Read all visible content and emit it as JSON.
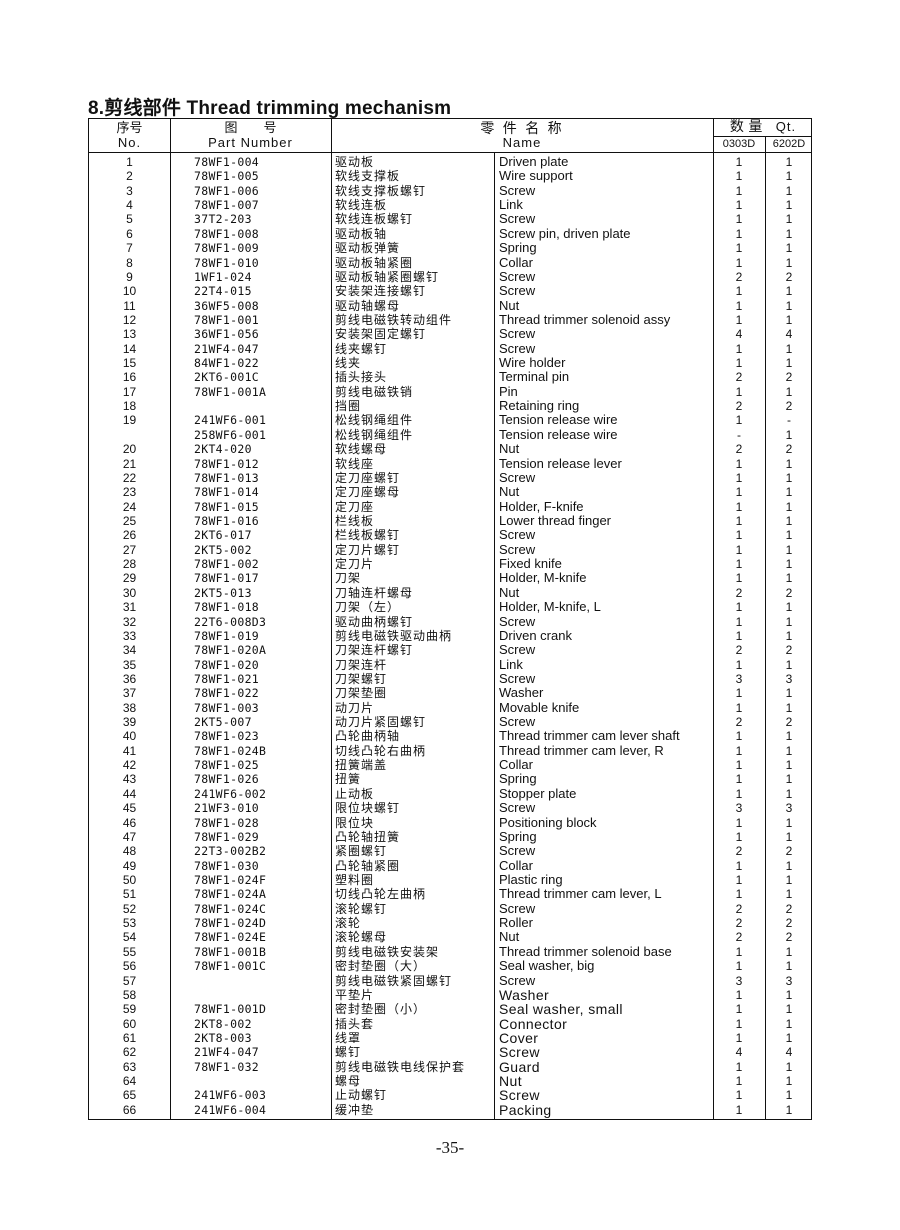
{
  "title": "8.剪线部件 Thread trimming mechanism",
  "header": {
    "no_cn": "序号",
    "no_en": "No.",
    "part_cn": "图　　号",
    "part_en": "Part Number",
    "name_cn": "零 件 名 称",
    "name_en": "Name",
    "qty_cn": "数 量",
    "qty_en": "Qt.",
    "qty_col1": "0303D",
    "qty_col2": "6202D"
  },
  "rows": [
    {
      "no": "1",
      "part": "78WF1-004",
      "cn": "驱动板",
      "en": "Driven plate",
      "q1": "1",
      "q2": "1"
    },
    {
      "no": "2",
      "part": "78WF1-005",
      "cn": "软线支撑板",
      "en": "Wire support",
      "q1": "1",
      "q2": "1"
    },
    {
      "no": "3",
      "part": "78WF1-006",
      "cn": "软线支撑板螺钉",
      "en": "Screw",
      "q1": "1",
      "q2": "1"
    },
    {
      "no": "4",
      "part": "78WF1-007",
      "cn": "软线连板",
      "en": "Link",
      "q1": "1",
      "q2": "1"
    },
    {
      "no": "5",
      "part": "37T2-203",
      "cn": "软线连板螺钉",
      "en": "Screw",
      "q1": "1",
      "q2": "1"
    },
    {
      "no": "6",
      "part": "78WF1-008",
      "cn": "驱动板轴",
      "en": "Screw pin, driven plate",
      "q1": "1",
      "q2": "1"
    },
    {
      "no": "7",
      "part": "78WF1-009",
      "cn": "驱动板弹簧",
      "en": "Spring",
      "q1": "1",
      "q2": "1"
    },
    {
      "no": "8",
      "part": "78WF1-010",
      "cn": "驱动板轴紧圈",
      "en": "Collar",
      "q1": "1",
      "q2": "1"
    },
    {
      "no": "9",
      "part": "1WF1-024",
      "cn": "驱动板轴紧圈螺钉",
      "en": "Screw",
      "q1": "2",
      "q2": "2"
    },
    {
      "no": "10",
      "part": "22T4-015",
      "cn": "安装架连接螺钉",
      "en": "Screw",
      "q1": "1",
      "q2": "1"
    },
    {
      "no": "11",
      "part": "36WF5-008",
      "cn": "驱动轴螺母",
      "en": "Nut",
      "q1": "1",
      "q2": "1"
    },
    {
      "no": "12",
      "part": "78WF1-001",
      "cn": "剪线电磁铁转动组件",
      "en": "Thread trimmer solenoid assy",
      "q1": "1",
      "q2": "1"
    },
    {
      "no": "13",
      "part": "36WF1-056",
      "cn": "安装架固定螺钉",
      "en": "Screw",
      "q1": "4",
      "q2": "4"
    },
    {
      "no": "14",
      "part": "21WF4-047",
      "cn": "线夹螺钉",
      "en": "Screw",
      "q1": "1",
      "q2": "1"
    },
    {
      "no": "15",
      "part": "84WF1-022",
      "cn": "线夹",
      "en": "Wire holder",
      "q1": "1",
      "q2": "1"
    },
    {
      "no": "16",
      "part": "2KT6-001C",
      "cn": "插头接头",
      "en": "Terminal pin",
      "q1": "2",
      "q2": "2"
    },
    {
      "no": "17",
      "part": "78WF1-001A",
      "cn": "剪线电磁铁销",
      "en": "Pin",
      "q1": "1",
      "q2": "1"
    },
    {
      "no": "18",
      "part": "",
      "cn": "挡圈",
      "en": "Retaining ring",
      "q1": "2",
      "q2": "2"
    },
    {
      "no": "19",
      "part": "241WF6-001",
      "cn": "松线钢绳组件",
      "en": "Tension release wire",
      "q1": "1",
      "q2": "-"
    },
    {
      "no": "",
      "part": "258WF6-001",
      "cn": "松线钢绳组件",
      "en": "Tension release wire",
      "q1": "-",
      "q2": "1"
    },
    {
      "no": "20",
      "part": "2KT4-020",
      "cn": "软线螺母",
      "en": "Nut",
      "q1": "2",
      "q2": "2"
    },
    {
      "no": "21",
      "part": "78WF1-012",
      "cn": "软线座",
      "en": "Tension release lever",
      "q1": "1",
      "q2": "1"
    },
    {
      "no": "22",
      "part": "78WF1-013",
      "cn": "定刀座螺钉",
      "en": "Screw",
      "q1": "1",
      "q2": "1"
    },
    {
      "no": "23",
      "part": "78WF1-014",
      "cn": "定刀座螺母",
      "en": "Nut",
      "q1": "1",
      "q2": "1"
    },
    {
      "no": "24",
      "part": "78WF1-015",
      "cn": "定刀座",
      "en": "Holder, F-knife",
      "q1": "1",
      "q2": "1"
    },
    {
      "no": "25",
      "part": "78WF1-016",
      "cn": "栏线板",
      "en": "Lower thread finger",
      "q1": "1",
      "q2": "1"
    },
    {
      "no": "26",
      "part": "2KT6-017",
      "cn": "栏线板螺钉",
      "en": "Screw",
      "q1": "1",
      "q2": "1"
    },
    {
      "no": "27",
      "part": "2KT5-002",
      "cn": "定刀片螺钉",
      "en": "Screw",
      "q1": "1",
      "q2": "1"
    },
    {
      "no": "28",
      "part": "78WF1-002",
      "cn": "定刀片",
      "en": "Fixed knife",
      "q1": "1",
      "q2": "1"
    },
    {
      "no": "29",
      "part": "78WF1-017",
      "cn": "刀架",
      "en": "Holder, M-knife",
      "q1": "1",
      "q2": "1"
    },
    {
      "no": "30",
      "part": "2KT5-013",
      "cn": "刀轴连杆螺母",
      "en": "Nut",
      "q1": "2",
      "q2": "2"
    },
    {
      "no": "31",
      "part": "78WF1-018",
      "cn": "刀架（左）",
      "en": "Holder, M-knife, L",
      "q1": "1",
      "q2": "1"
    },
    {
      "no": "32",
      "part": "22T6-008D3",
      "cn": "驱动曲柄螺钉",
      "en": "Screw",
      "q1": "1",
      "q2": "1"
    },
    {
      "no": "33",
      "part": "78WF1-019",
      "cn": "剪线电磁铁驱动曲柄",
      "en": "Driven crank",
      "q1": "1",
      "q2": "1"
    },
    {
      "no": "34",
      "part": "78WF1-020A",
      "cn": "刀架连杆螺钉",
      "en": "Screw",
      "q1": "2",
      "q2": "2"
    },
    {
      "no": "35",
      "part": "78WF1-020",
      "cn": "刀架连杆",
      "en": "Link",
      "q1": "1",
      "q2": "1"
    },
    {
      "no": "36",
      "part": "78WF1-021",
      "cn": "刀架螺钉",
      "en": "Screw",
      "q1": "3",
      "q2": "3"
    },
    {
      "no": "37",
      "part": "78WF1-022",
      "cn": "刀架垫圈",
      "en": "Washer",
      "q1": "1",
      "q2": "1"
    },
    {
      "no": "38",
      "part": "78WF1-003",
      "cn": "动刀片",
      "en": "Movable knife",
      "q1": "1",
      "q2": "1"
    },
    {
      "no": "39",
      "part": "2KT5-007",
      "cn": "动刀片紧固螺钉",
      "en": "Screw",
      "q1": "2",
      "q2": "2"
    },
    {
      "no": "40",
      "part": "78WF1-023",
      "cn": "凸轮曲柄轴",
      "en": "Thread trimmer cam lever shaft",
      "q1": "1",
      "q2": "1"
    },
    {
      "no": "41",
      "part": "78WF1-024B",
      "cn": "切线凸轮右曲柄",
      "en": "Thread trimmer cam lever, R",
      "q1": "1",
      "q2": "1"
    },
    {
      "no": "42",
      "part": "78WF1-025",
      "cn": "扭簧端盖",
      "en": "Collar",
      "q1": "1",
      "q2": "1"
    },
    {
      "no": "43",
      "part": "78WF1-026",
      "cn": "扭簧",
      "en": "Spring",
      "q1": "1",
      "q2": "1"
    },
    {
      "no": "44",
      "part": "241WF6-002",
      "cn": "止动板",
      "en": "Stopper plate",
      "q1": "1",
      "q2": "1"
    },
    {
      "no": "45",
      "part": "21WF3-010",
      "cn": "限位块螺钉",
      "en": "Screw",
      "q1": "3",
      "q2": "3"
    },
    {
      "no": "46",
      "part": "78WF1-028",
      "cn": "限位块",
      "en": "Positioning block",
      "q1": "1",
      "q2": "1"
    },
    {
      "no": "47",
      "part": "78WF1-029",
      "cn": "凸轮轴扭簧",
      "en": "Spring",
      "q1": "1",
      "q2": "1"
    },
    {
      "no": "48",
      "part": "22T3-002B2",
      "cn": "紧圈螺钉",
      "en": "Screw",
      "q1": "2",
      "q2": "2"
    },
    {
      "no": "49",
      "part": "78WF1-030",
      "cn": "凸轮轴紧圈",
      "en": "Collar",
      "q1": "1",
      "q2": "1"
    },
    {
      "no": "50",
      "part": "78WF1-024F",
      "cn": "塑料圈",
      "en": "Plastic ring",
      "q1": "1",
      "q2": "1"
    },
    {
      "no": "51",
      "part": "78WF1-024A",
      "cn": "切线凸轮左曲柄",
      "en": "Thread trimmer cam lever, L",
      "q1": "1",
      "q2": "1"
    },
    {
      "no": "52",
      "part": "78WF1-024C",
      "cn": "滚轮螺钉",
      "en": "Screw",
      "q1": "2",
      "q2": "2"
    },
    {
      "no": "53",
      "part": "78WF1-024D",
      "cn": "滚轮",
      "en": "Roller",
      "q1": "2",
      "q2": "2"
    },
    {
      "no": "54",
      "part": "78WF1-024E",
      "cn": "滚轮螺母",
      "en": "Nut",
      "q1": "2",
      "q2": "2"
    },
    {
      "no": "55",
      "part": "78WF1-001B",
      "cn": "剪线电磁铁安装架",
      "en": "Thread trimmer solenoid base",
      "q1": "1",
      "q2": "1"
    },
    {
      "no": "56",
      "part": "78WF1-001C",
      "cn": "密封垫圈（大）",
      "en": "Seal washer, big",
      "q1": "1",
      "q2": "1"
    },
    {
      "no": "57",
      "part": "",
      "cn": "剪线电磁铁紧固螺钉",
      "en": "Screw",
      "q1": "3",
      "q2": "3"
    },
    {
      "no": "58",
      "part": "",
      "cn": "平垫片",
      "en": "Washer",
      "q1": "1",
      "q2": "1"
    },
    {
      "no": "59",
      "part": "78WF1-001D",
      "cn": "密封垫圈（小）",
      "en": "Seal washer, small",
      "q1": "1",
      "q2": "1"
    },
    {
      "no": "60",
      "part": "2KT8-002",
      "cn": "插头套",
      "en": "Connector",
      "q1": "1",
      "q2": "1"
    },
    {
      "no": "61",
      "part": "2KT8-003",
      "cn": "线罩",
      "en": "Cover",
      "q1": "1",
      "q2": "1"
    },
    {
      "no": "62",
      "part": "21WF4-047",
      "cn": "螺钉",
      "en": "Screw",
      "q1": "4",
      "q2": "4"
    },
    {
      "no": "63",
      "part": "78WF1-032",
      "cn": "剪线电磁铁电线保护套",
      "en": "Guard",
      "q1": "1",
      "q2": "1"
    },
    {
      "no": "64",
      "part": "",
      "cn": "螺母",
      "en": "Nut",
      "q1": "1",
      "q2": "1"
    },
    {
      "no": "65",
      "part": "241WF6-003",
      "cn": "止动螺钉",
      "en": "Screw",
      "q1": "1",
      "q2": "1"
    },
    {
      "no": "66",
      "part": "241WF6-004",
      "cn": "缓冲垫",
      "en": "Packing",
      "q1": "1",
      "q2": "1"
    }
  ],
  "page_number": "-35-"
}
